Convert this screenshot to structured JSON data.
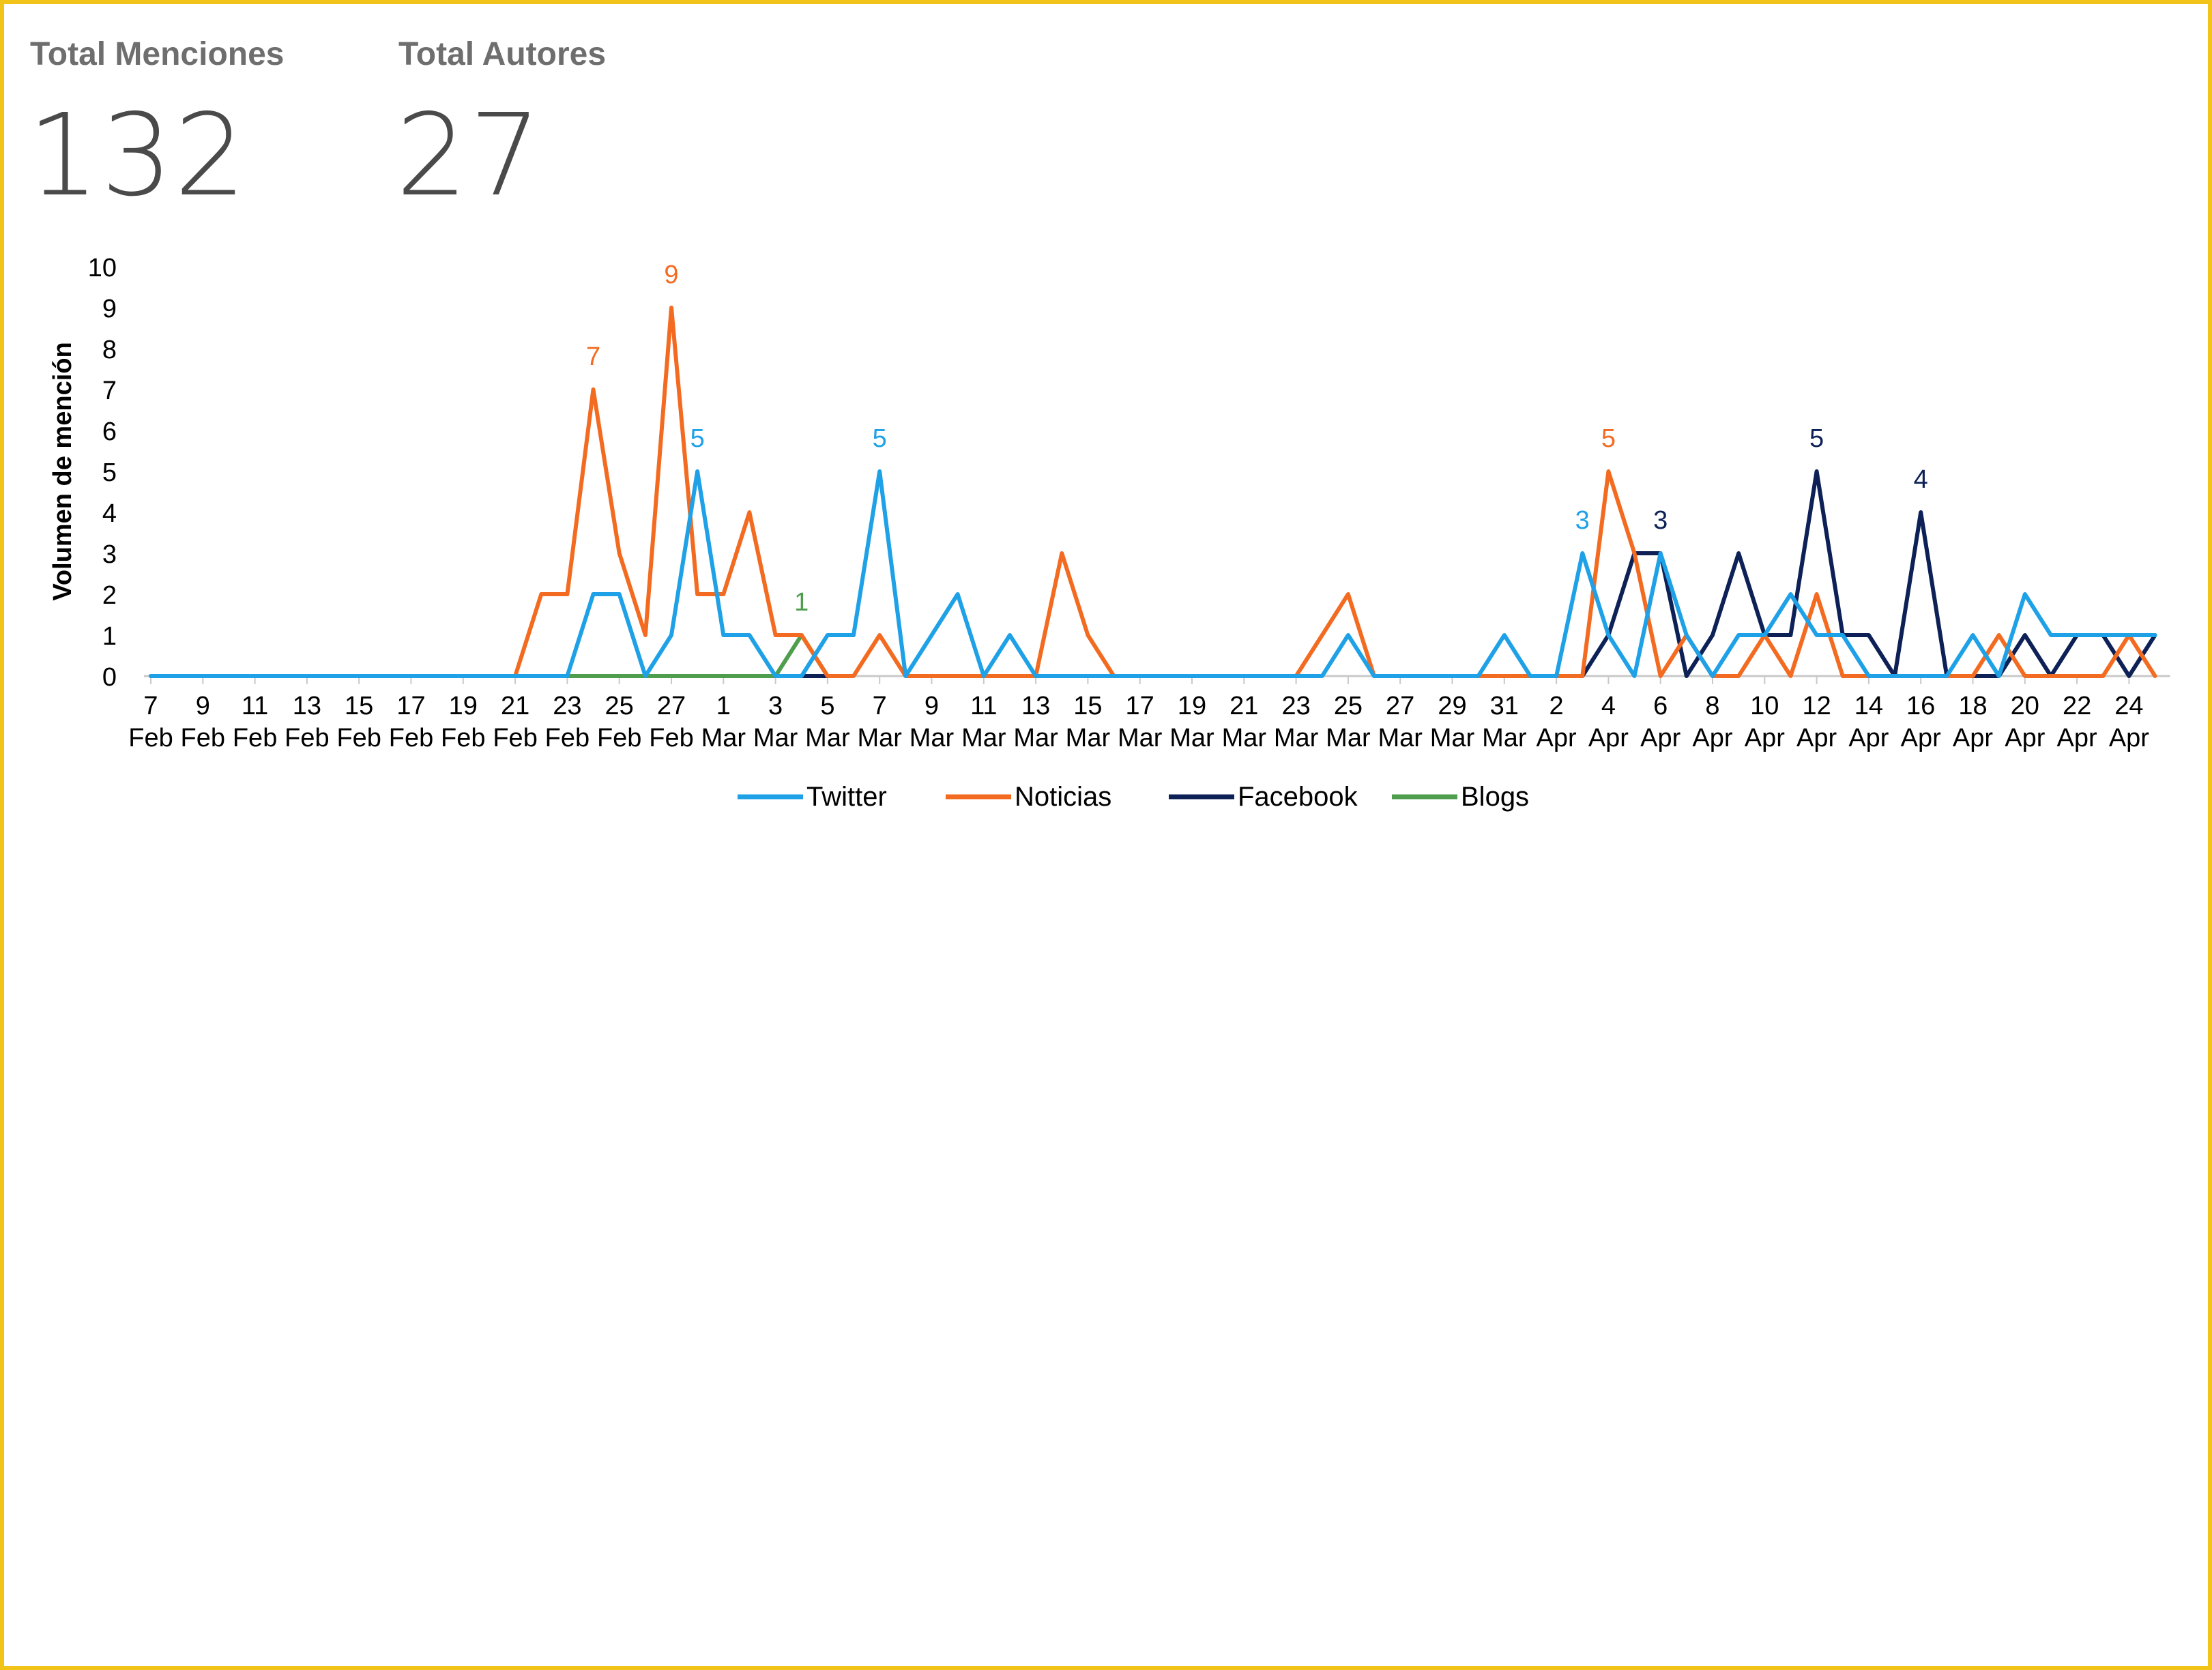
{
  "kpis": [
    {
      "label": "Total Menciones",
      "value": "132"
    },
    {
      "label": "Total Autores",
      "value": "27"
    }
  ],
  "chart_data": {
    "type": "line",
    "title": "",
    "xlabel": "",
    "ylabel": "Volumen de mención",
    "ylim": [
      0,
      10
    ],
    "yticks": [
      0,
      1,
      2,
      3,
      4,
      5,
      6,
      7,
      8,
      9,
      10
    ],
    "x": [
      "2021-02-07",
      "2021-02-08",
      "2021-02-09",
      "2021-02-10",
      "2021-02-11",
      "2021-02-12",
      "2021-02-13",
      "2021-02-14",
      "2021-02-15",
      "2021-02-16",
      "2021-02-17",
      "2021-02-18",
      "2021-02-19",
      "2021-02-20",
      "2021-02-21",
      "2021-02-22",
      "2021-02-23",
      "2021-02-24",
      "2021-02-25",
      "2021-02-26",
      "2021-02-27",
      "2021-02-28",
      "2021-03-01",
      "2021-03-02",
      "2021-03-03",
      "2021-03-04",
      "2021-03-05",
      "2021-03-06",
      "2021-03-07",
      "2021-03-08",
      "2021-03-09",
      "2021-03-10",
      "2021-03-11",
      "2021-03-12",
      "2021-03-13",
      "2021-03-14",
      "2021-03-15",
      "2021-03-16",
      "2021-03-17",
      "2021-03-18",
      "2021-03-19",
      "2021-03-20",
      "2021-03-21",
      "2021-03-22",
      "2021-03-23",
      "2021-03-24",
      "2021-03-25",
      "2021-03-26",
      "2021-03-27",
      "2021-03-28",
      "2021-03-29",
      "2021-03-30",
      "2021-03-31",
      "2021-04-01",
      "2021-04-02",
      "2021-04-03",
      "2021-04-04",
      "2021-04-05",
      "2021-04-06",
      "2021-04-07",
      "2021-04-08",
      "2021-04-09",
      "2021-04-10",
      "2021-04-11",
      "2021-04-12",
      "2021-04-13",
      "2021-04-14",
      "2021-04-15",
      "2021-04-16",
      "2021-04-17",
      "2021-04-18",
      "2021-04-19",
      "2021-04-20",
      "2021-04-21",
      "2021-04-22",
      "2021-04-23",
      "2021-04-24",
      "2021-04-25"
    ],
    "xtick_labels": [
      [
        "7",
        "Feb"
      ],
      [
        "9",
        "Feb"
      ],
      [
        "11",
        "Feb"
      ],
      [
        "13",
        "Feb"
      ],
      [
        "15",
        "Feb"
      ],
      [
        "17",
        "Feb"
      ],
      [
        "19",
        "Feb"
      ],
      [
        "21",
        "Feb"
      ],
      [
        "23",
        "Feb"
      ],
      [
        "25",
        "Feb"
      ],
      [
        "27",
        "Feb"
      ],
      [
        "1",
        "Mar"
      ],
      [
        "3",
        "Mar"
      ],
      [
        "5",
        "Mar"
      ],
      [
        "7",
        "Mar"
      ],
      [
        "9",
        "Mar"
      ],
      [
        "11",
        "Mar"
      ],
      [
        "13",
        "Mar"
      ],
      [
        "15",
        "Mar"
      ],
      [
        "17",
        "Mar"
      ],
      [
        "19",
        "Mar"
      ],
      [
        "21",
        "Mar"
      ],
      [
        "23",
        "Mar"
      ],
      [
        "25",
        "Mar"
      ],
      [
        "27",
        "Mar"
      ],
      [
        "29",
        "Mar"
      ],
      [
        "31",
        "Mar"
      ],
      [
        "2",
        "Apr"
      ],
      [
        "4",
        "Apr"
      ],
      [
        "6",
        "Apr"
      ],
      [
        "8",
        "Apr"
      ],
      [
        "10",
        "Apr"
      ],
      [
        "12",
        "Apr"
      ],
      [
        "14",
        "Apr"
      ],
      [
        "16",
        "Apr"
      ],
      [
        "18",
        "Apr"
      ],
      [
        "20",
        "Apr"
      ],
      [
        "22",
        "Apr"
      ],
      [
        "24",
        "Apr"
      ]
    ],
    "legend_position": "bottom",
    "grid": false,
    "series": [
      {
        "name": "Twitter",
        "color": "#1ea1e6",
        "values": [
          0,
          0,
          0,
          0,
          0,
          0,
          0,
          0,
          0,
          0,
          0,
          0,
          0,
          0,
          0,
          0,
          0,
          2,
          2,
          0,
          1,
          5,
          1,
          1,
          0,
          0,
          1,
          1,
          5,
          0,
          1,
          2,
          0,
          1,
          0,
          0,
          0,
          0,
          0,
          0,
          0,
          0,
          0,
          0,
          0,
          0,
          1,
          0,
          0,
          0,
          0,
          0,
          1,
          0,
          0,
          3,
          1,
          0,
          3,
          1,
          0,
          1,
          1,
          2,
          1,
          1,
          0,
          0,
          0,
          0,
          1,
          0,
          2,
          1,
          1,
          1,
          1,
          1
        ],
        "labels": [
          {
            "index": 21,
            "value": 5
          },
          {
            "index": 28,
            "value": 5
          },
          {
            "index": 55,
            "value": 3
          }
        ]
      },
      {
        "name": "Noticias",
        "color": "#f36b21",
        "values": [
          0,
          0,
          0,
          0,
          0,
          0,
          0,
          0,
          0,
          0,
          0,
          0,
          0,
          0,
          0,
          2,
          2,
          7,
          3,
          1,
          9,
          2,
          2,
          4,
          1,
          1,
          0,
          0,
          1,
          0,
          0,
          0,
          0,
          0,
          0,
          3,
          1,
          0,
          0,
          0,
          0,
          0,
          0,
          0,
          0,
          1,
          2,
          0,
          0,
          0,
          0,
          0,
          0,
          0,
          0,
          0,
          5,
          3,
          0,
          1,
          0,
          0,
          1,
          0,
          2,
          0,
          0,
          0,
          0,
          0,
          0,
          1,
          0,
          0,
          0,
          0,
          1,
          0
        ],
        "labels": [
          {
            "index": 17,
            "value": 7
          },
          {
            "index": 20,
            "value": 9
          },
          {
            "index": 56,
            "value": 5
          }
        ]
      },
      {
        "name": "Facebook",
        "color": "#0d2157",
        "segments": [
          [
            24,
            26
          ],
          [
            55,
            77
          ]
        ],
        "values": [
          0,
          0,
          0,
          0,
          0,
          0,
          0,
          0,
          0,
          0,
          0,
          0,
          0,
          0,
          0,
          0,
          0,
          0,
          0,
          0,
          0,
          0,
          0,
          0,
          0,
          0,
          0,
          0,
          0,
          0,
          0,
          0,
          0,
          0,
          0,
          0,
          0,
          0,
          0,
          0,
          0,
          0,
          0,
          0,
          0,
          0,
          0,
          0,
          0,
          0,
          0,
          0,
          0,
          0,
          0,
          0,
          1,
          3,
          3,
          0,
          1,
          3,
          1,
          1,
          5,
          1,
          1,
          0,
          4,
          0,
          0,
          0,
          1,
          0,
          1,
          1,
          0,
          1
        ],
        "labels": [
          {
            "index": 58,
            "value": 3
          },
          {
            "index": 64,
            "value": 5
          },
          {
            "index": 68,
            "value": 4
          }
        ]
      },
      {
        "name": "Blogs",
        "color": "#4f9e4e",
        "segments": [
          [
            0,
            26
          ]
        ],
        "values": [
          0,
          0,
          0,
          0,
          0,
          0,
          0,
          0,
          0,
          0,
          0,
          0,
          0,
          0,
          0,
          0,
          0,
          0,
          0,
          0,
          0,
          0,
          0,
          0,
          0,
          1,
          0,
          0,
          0,
          0,
          0,
          0,
          0,
          0,
          0,
          0,
          0,
          0,
          0,
          0,
          0,
          0,
          0,
          0,
          0,
          0,
          0,
          0,
          0,
          0,
          0,
          0,
          0,
          0,
          0,
          0,
          0,
          0,
          0,
          0,
          0,
          0,
          0,
          0,
          0,
          0,
          0,
          0,
          0,
          0,
          0,
          0,
          0,
          0,
          0,
          0,
          0,
          0
        ],
        "labels": [
          {
            "index": 25,
            "value": 1
          }
        ]
      }
    ]
  }
}
